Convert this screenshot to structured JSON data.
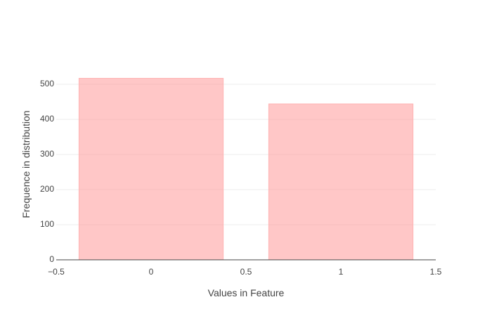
{
  "chart_data": {
    "type": "bar",
    "x": [
      0,
      1
    ],
    "values": [
      517,
      444
    ],
    "title": "",
    "xlabel": "Values in Feature",
    "ylabel": "Frequence in distribution",
    "xlim": [
      -0.5,
      1.5
    ],
    "ylim": [
      0,
      540
    ],
    "x_ticks": [
      -0.5,
      0,
      0.5,
      1,
      1.5
    ],
    "x_tick_labels": [
      "−0.5",
      "0",
      "0.5",
      "1",
      "1.5"
    ],
    "y_ticks": [
      0,
      100,
      200,
      300,
      400,
      500
    ],
    "y_tick_labels": [
      "0",
      "100",
      "200",
      "300",
      "400",
      "500"
    ],
    "bar_width": 0.76,
    "grid": true,
    "legend": "none",
    "colors": {
      "bar_fill": "#ff9999",
      "bar_stroke": "#ffb3b3"
    }
  }
}
